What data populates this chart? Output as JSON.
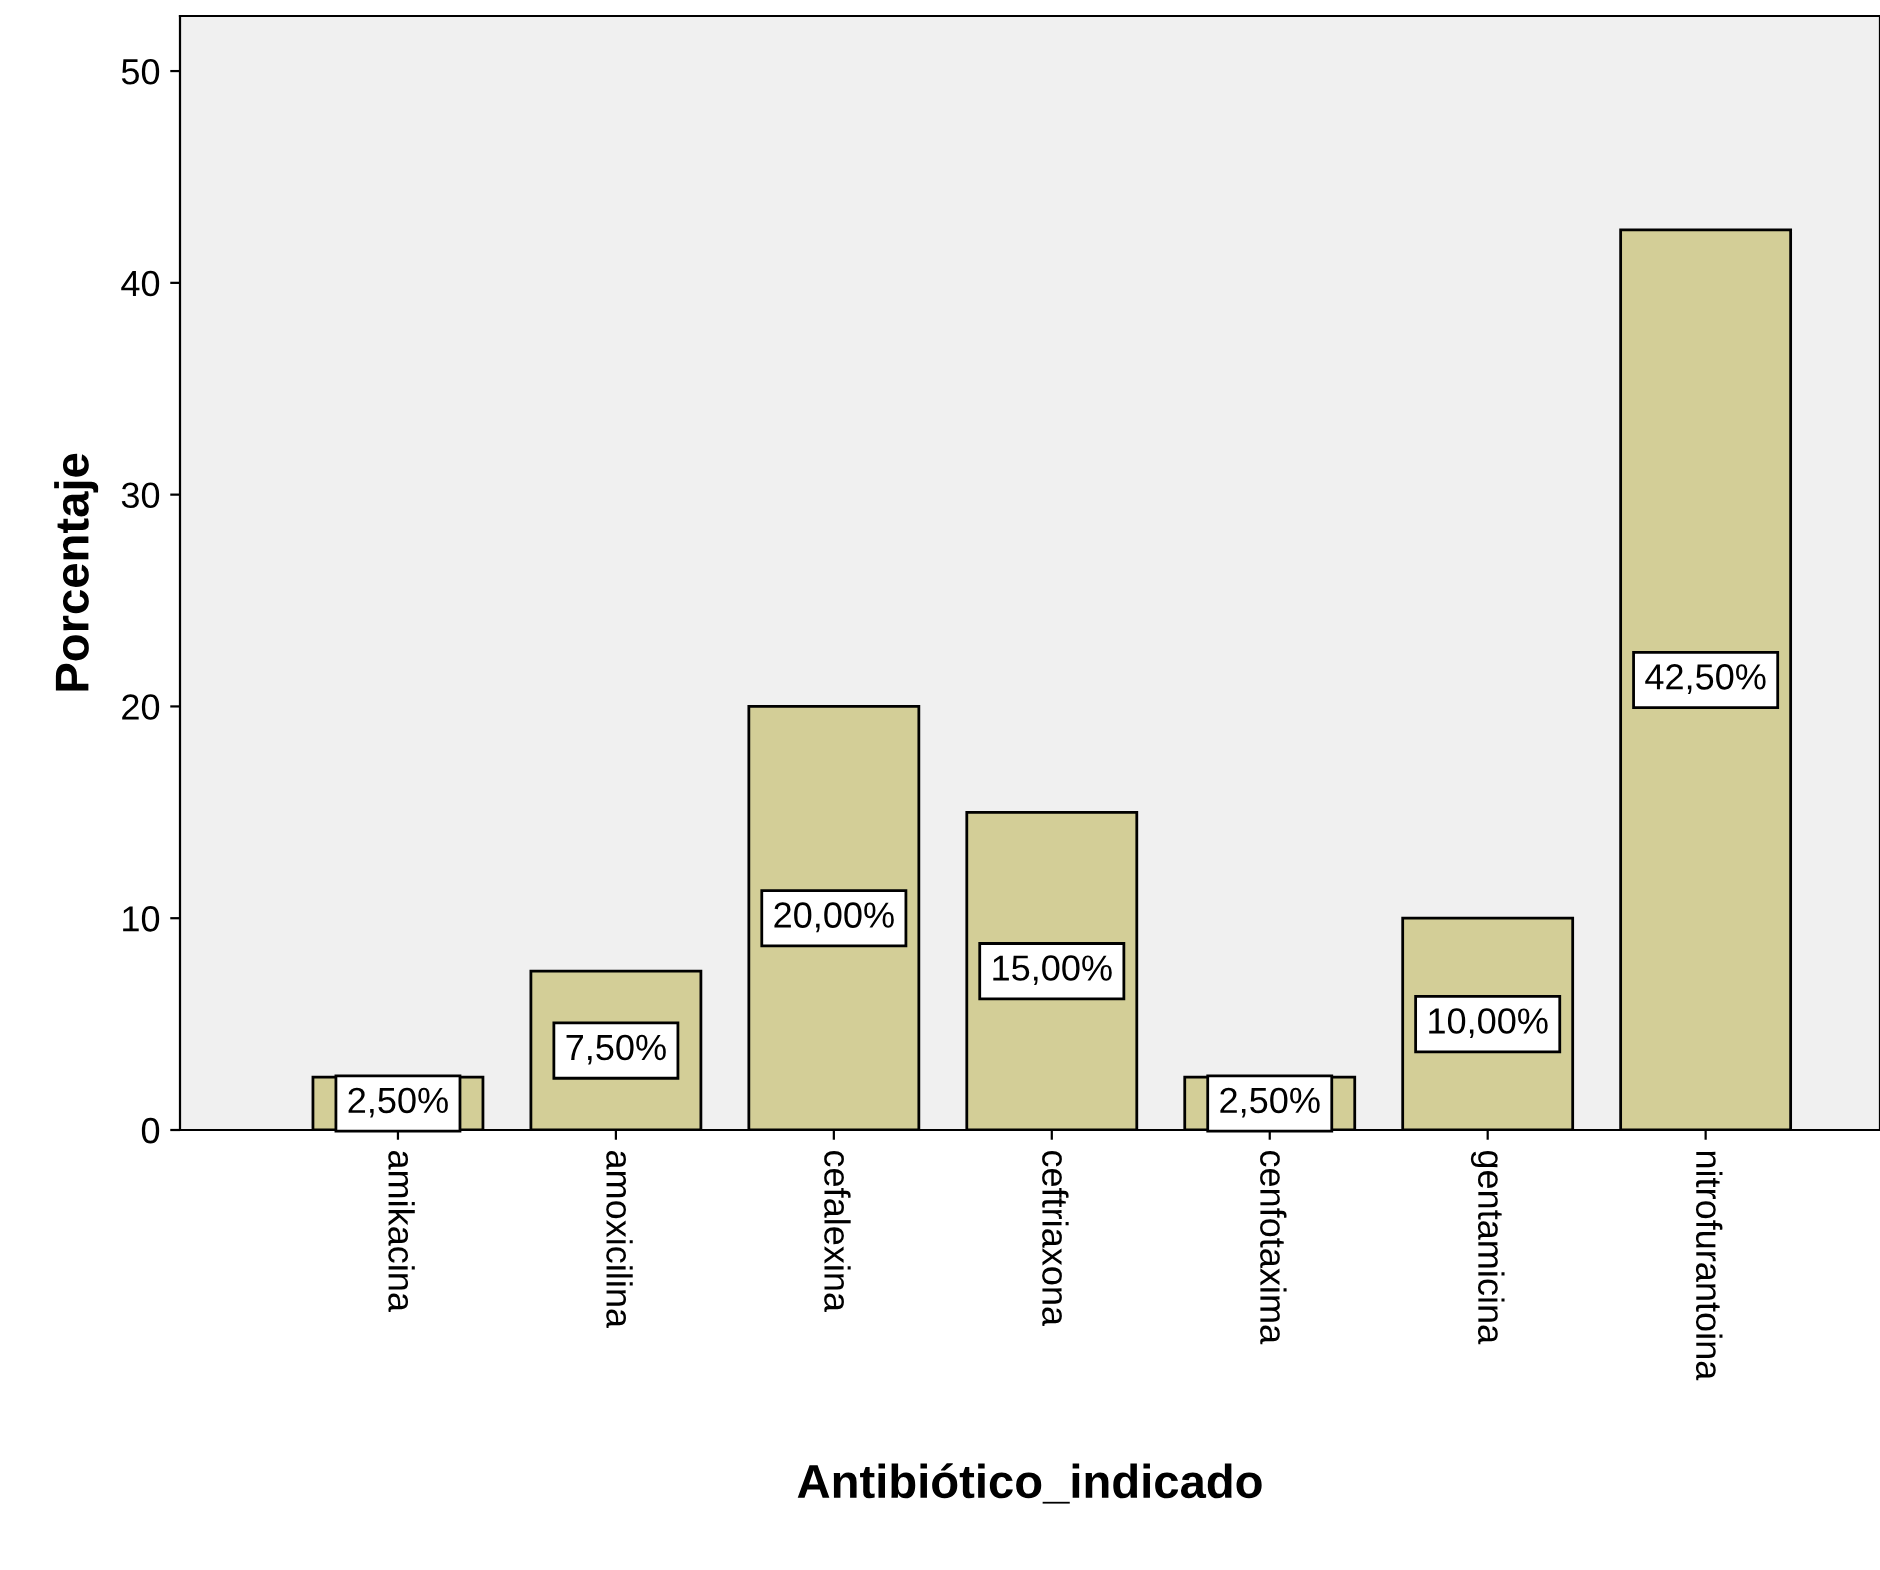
{
  "chart_data": {
    "type": "bar",
    "xlabel": "Antibiótico_indicado",
    "ylabel": "Porcentaje",
    "categories": [
      "amikacina",
      "amoxicilina",
      "cefalexina",
      "ceftriaxona",
      "cenfotaxima",
      "gentamicina",
      "nitrofurantoina"
    ],
    "values": [
      2.5,
      7.5,
      20,
      15,
      2.5,
      10,
      42.5
    ],
    "value_labels": [
      "2,50%",
      "7,50%",
      "20,00%",
      "15,00%",
      "2,50%",
      "10,00%",
      "42,50%"
    ],
    "color": "#d3ce97",
    "ylim": [
      0,
      52.6
    ],
    "yticks": [
      0,
      10,
      20,
      30,
      40,
      50
    ],
    "grid": false,
    "legend": false
  }
}
